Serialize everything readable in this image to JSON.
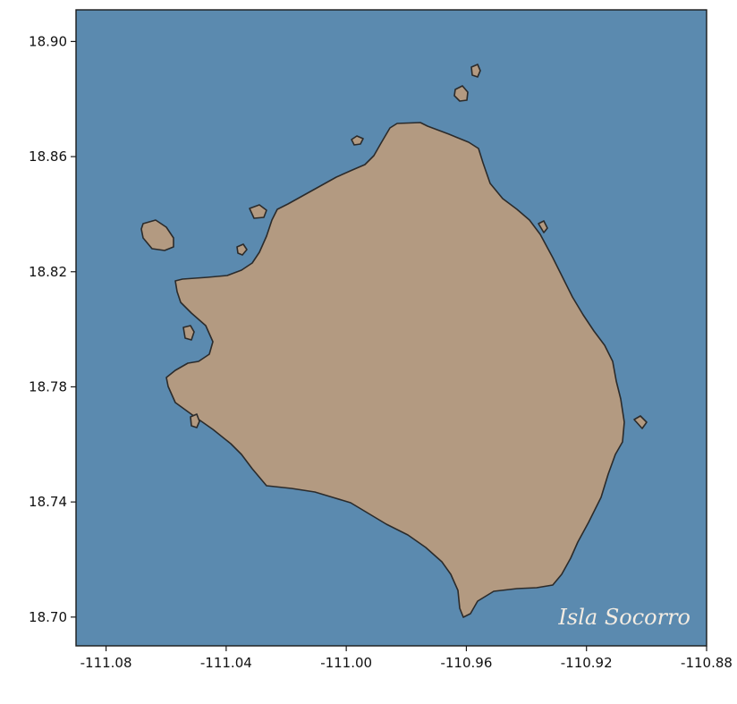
{
  "map": {
    "label": "Isla Socorro",
    "colors": {
      "water": "#5b8aaf",
      "land": "#b39a81",
      "coast": "#2b2b2b",
      "frame": "#1a1a1a"
    },
    "x_axis": {
      "range": [
        -111.09,
        -110.88
      ],
      "ticks": [
        -111.08,
        -111.04,
        -111.0,
        -110.96,
        -110.92,
        -110.88
      ],
      "tick_labels": [
        "-111.08",
        "-111.04",
        "-111.00",
        "-110.96",
        "-110.92",
        "-110.88"
      ]
    },
    "y_axis": {
      "range": [
        18.69,
        18.911
      ],
      "ticks": [
        18.7,
        18.74,
        18.78,
        18.82,
        18.86,
        18.9
      ],
      "tick_labels": [
        "18.70",
        "18.74",
        "18.78",
        "18.82",
        "18.86",
        "18.90"
      ]
    }
  }
}
